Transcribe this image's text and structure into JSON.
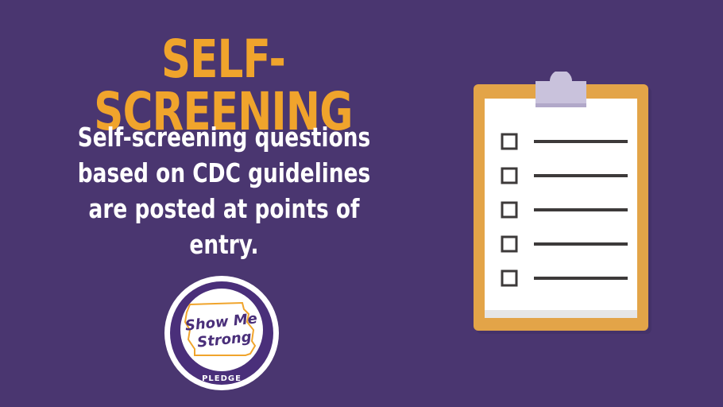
{
  "slide": {
    "title": "SELF-SCREENING",
    "subtitle": "Self-screening questions based on CDC guidelines are posted at points of entry."
  },
  "logo": {
    "line1": "Show Me",
    "line2": "Strong",
    "pledge": "PLEDGE",
    "icon": "missouri-state-outline-icon"
  },
  "clipboard": {
    "icon": "clipboard-checklist-icon",
    "item_count": 5
  },
  "colors": {
    "background": "#4a3670",
    "title": "#f0a42c",
    "text": "#ffffff",
    "clipboard_board": "#e3a448",
    "clipboard_clip": "#c9c2dc",
    "checklist_lines": "#3d3a3a"
  }
}
